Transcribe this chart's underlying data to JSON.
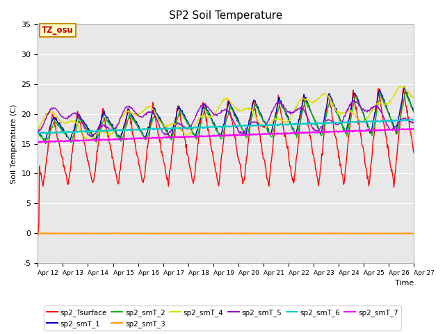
{
  "title": "SP2 Soil Temperature",
  "xlabel": "Time",
  "ylabel": "Soil Temperature (C)",
  "ylim": [
    -5,
    35
  ],
  "background_color": "#e8e8e8",
  "annotation_text": "TZ_osu",
  "annotation_bg": "#ffffcc",
  "annotation_border": "#cc8800",
  "xtick_labels": [
    "Apr 12",
    "Apr 13",
    "Apr 14",
    "Apr 15",
    "Apr 16",
    "Apr 17",
    "Apr 18",
    "Apr 19",
    "Apr 20",
    "Apr 21",
    "Apr 22",
    "Apr 23",
    "Apr 24",
    "Apr 25",
    "Apr 26",
    "Apr 27"
  ],
  "ytick_labels": [
    "-5",
    "0",
    "5",
    "10",
    "15",
    "20",
    "25",
    "30",
    "35"
  ],
  "ytick_positions": [
    -5,
    0,
    5,
    10,
    15,
    20,
    25,
    30,
    35
  ],
  "series_colors": {
    "sp2_Tsurface": "#ff0000",
    "sp2_smT_1": "#0000bb",
    "sp2_smT_2": "#00bb00",
    "sp2_smT_3": "#ff9900",
    "sp2_smT_4": "#dddd00",
    "sp2_smT_5": "#9900cc",
    "sp2_smT_6": "#00cccc",
    "sp2_smT_7": "#ff00ff"
  },
  "legend_order": [
    "sp2_Tsurface",
    "sp2_smT_1",
    "sp2_smT_2",
    "sp2_smT_3",
    "sp2_smT_4",
    "sp2_smT_5",
    "sp2_smT_6",
    "sp2_smT_7"
  ]
}
